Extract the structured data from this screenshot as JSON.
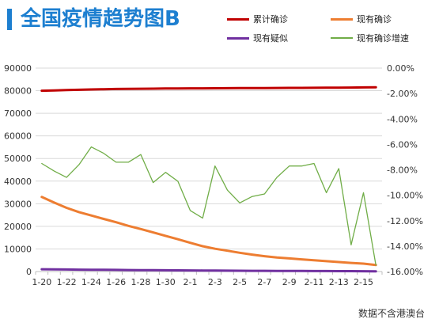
{
  "title": "全国疫情趋势图B",
  "footnote": "数据不含港澳台",
  "colors": {
    "cumulative": "#c00000",
    "current": "#ed7d31",
    "suspected": "#7030a0",
    "growth": "#70ad47",
    "title": "#1d7fd0"
  },
  "chart_data": {
    "type": "line",
    "title": "全国疫情趋势图B",
    "x": [
      "1-20",
      "1-21",
      "1-22",
      "1-23",
      "1-24",
      "1-25",
      "1-26",
      "1-27",
      "1-28",
      "1-29",
      "1-30",
      "1-31",
      "2-1",
      "2-2",
      "2-3",
      "2-4",
      "2-5",
      "2-6",
      "2-7",
      "2-8",
      "2-9",
      "2-10",
      "2-11",
      "2-12",
      "2-13",
      "2-14",
      "2-15",
      "2-16"
    ],
    "x_tick_labels": [
      "1-20",
      "1-22",
      "1-24",
      "1-26",
      "1-28",
      "1-30",
      "2-1",
      "2-3",
      "2-5",
      "2-7",
      "2-9",
      "2-11",
      "2-13",
      "2-15"
    ],
    "y_left": {
      "min": 0,
      "max": 90000,
      "step": 10000,
      "ticks": [
        "0",
        "10000",
        "20000",
        "30000",
        "40000",
        "50000",
        "60000",
        "70000",
        "80000",
        "90000"
      ]
    },
    "y_right": {
      "min": -16,
      "max": 0,
      "step": 2,
      "ticks": [
        "0.00%",
        "-2.00%",
        "-4.00%",
        "-6.00%",
        "-8.00%",
        "-10.00%",
        "-12.00%",
        "-14.00%",
        "-16.00%"
      ]
    },
    "grid": true,
    "legend_position": "top-right",
    "series": [
      {
        "name": "累计确诊",
        "axis": "left",
        "color": "#c00000",
        "width": 3,
        "values": [
          80000,
          80100,
          80250,
          80400,
          80550,
          80650,
          80750,
          80800,
          80850,
          80900,
          80950,
          81000,
          81020,
          81050,
          81080,
          81100,
          81130,
          81150,
          81180,
          81200,
          81230,
          81260,
          81290,
          81320,
          81350,
          81400,
          81450,
          81500
        ]
      },
      {
        "name": "现有确诊",
        "axis": "left",
        "color": "#ed7d31",
        "width": 3,
        "values": [
          33000,
          30500,
          28200,
          26300,
          24800,
          23300,
          21800,
          20200,
          18800,
          17300,
          15800,
          14300,
          12700,
          11200,
          10100,
          9200,
          8300,
          7500,
          6800,
          6200,
          5800,
          5400,
          5000,
          4600,
          4200,
          3800,
          3500,
          2900
        ]
      },
      {
        "name": "现有疑似",
        "axis": "left",
        "color": "#7030a0",
        "width": 3,
        "values": [
          1000,
          950,
          900,
          850,
          800,
          760,
          720,
          680,
          640,
          600,
          560,
          520,
          480,
          440,
          410,
          380,
          350,
          320,
          300,
          280,
          260,
          240,
          220,
          200,
          180,
          160,
          140,
          120
        ]
      },
      {
        "name": "现有确诊增速",
        "axis": "right",
        "color": "#70ad47",
        "width": 1.3,
        "values": [
          -7.5,
          -8.1,
          -8.6,
          -7.6,
          -6.2,
          -6.7,
          -7.4,
          -7.4,
          -6.8,
          -9.0,
          -8.2,
          -8.9,
          -11.2,
          -11.8,
          -7.7,
          -9.6,
          -10.6,
          -10.1,
          -9.9,
          -8.6,
          -7.7,
          -7.7,
          -7.5,
          -9.8,
          -7.9,
          -13.9,
          -9.8,
          -15.5
        ]
      }
    ]
  }
}
